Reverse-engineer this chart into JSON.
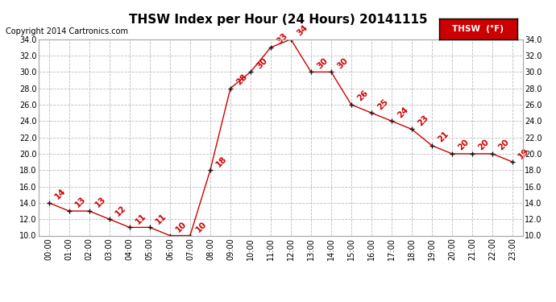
{
  "title": "THSW Index per Hour (24 Hours) 20141115",
  "copyright": "Copyright 2014 Cartronics.com",
  "legend_label": "THSW  (°F)",
  "hours": [
    0,
    1,
    2,
    3,
    4,
    5,
    6,
    7,
    8,
    9,
    10,
    11,
    12,
    13,
    14,
    15,
    16,
    17,
    18,
    19,
    20,
    21,
    22,
    23
  ],
  "values": [
    14,
    13,
    13,
    12,
    11,
    11,
    10,
    10,
    18,
    28,
    30,
    33,
    34,
    30,
    30,
    26,
    25,
    24,
    23,
    21,
    20,
    20,
    20,
    19
  ],
  "x_labels": [
    "00:00",
    "01:00",
    "02:00",
    "03:00",
    "04:00",
    "05:00",
    "06:00",
    "07:00",
    "08:00",
    "09:00",
    "10:00",
    "11:00",
    "12:00",
    "13:00",
    "14:00",
    "15:00",
    "16:00",
    "17:00",
    "18:00",
    "19:00",
    "20:00",
    "21:00",
    "22:00",
    "23:00"
  ],
  "ylim_min": 10.0,
  "ylim_max": 34.0,
  "yticks": [
    10.0,
    12.0,
    14.0,
    16.0,
    18.0,
    20.0,
    22.0,
    24.0,
    26.0,
    28.0,
    30.0,
    32.0,
    34.0
  ],
  "line_color": "#cc0000",
  "marker_color": "#111111",
  "bg_color": "#ffffff",
  "grid_color": "#bbbbbb",
  "title_fontsize": 11,
  "label_fontsize": 7,
  "value_fontsize": 7.5,
  "copyright_fontsize": 7,
  "legend_bg": "#cc0000",
  "legend_text_color": "#ffffff"
}
